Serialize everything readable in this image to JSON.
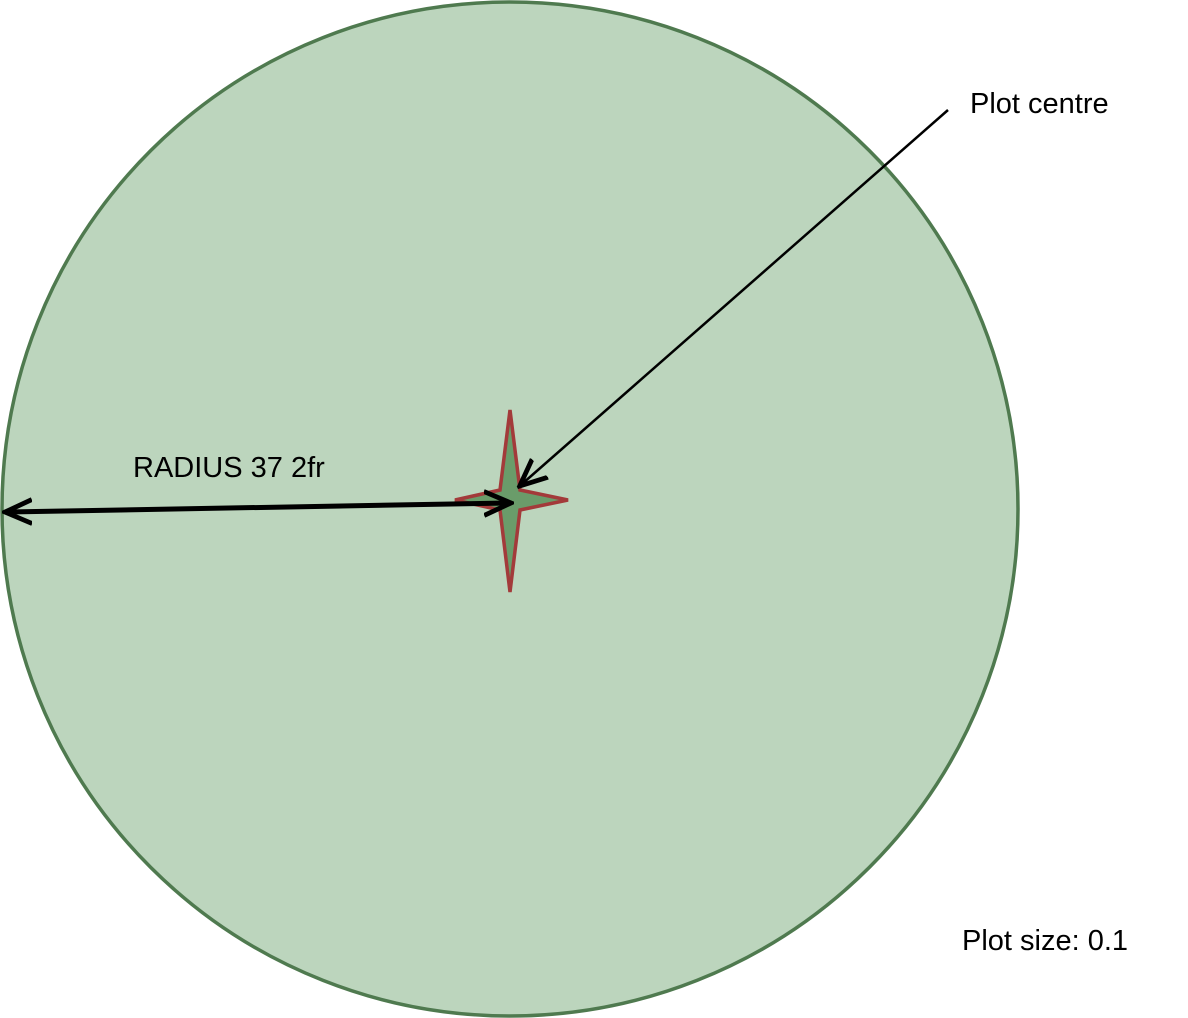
{
  "labels": {
    "plot_centre": "Plot centre",
    "radius": "RADIUS 37 2fr",
    "plot_size": "Plot size: 0.1"
  }
}
